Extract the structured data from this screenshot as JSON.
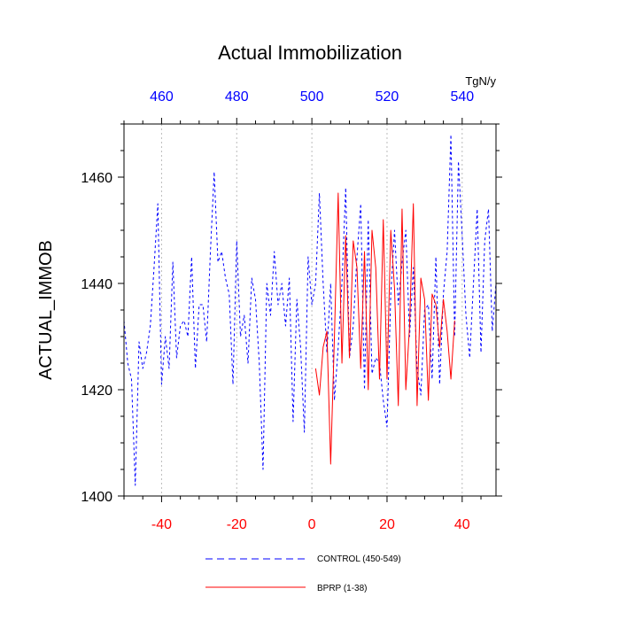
{
  "chart_data": {
    "type": "line",
    "title": "Actual Immobilization",
    "ylabel": "ACTUAL_IMMOB",
    "units": "TgN/y",
    "xlim": [
      -50,
      49
    ],
    "ylim": [
      1400,
      1470
    ],
    "x_ticks": [
      -40,
      -20,
      0,
      20,
      40
    ],
    "x_tick_labels": [
      "-40",
      "-20",
      "0",
      "20",
      "40"
    ],
    "top_ticks": [
      460,
      480,
      500,
      520,
      540
    ],
    "top_tick_labels": [
      "460",
      "480",
      "500",
      "520",
      "540"
    ],
    "top_offset": 500,
    "y_ticks": [
      1400,
      1420,
      1440,
      1460
    ],
    "y_tick_labels": [
      "1400",
      "1420",
      "1440",
      "1460"
    ],
    "colors": {
      "bottom_axis": "#ff0000",
      "top_axis": "#0000ff"
    },
    "series": [
      {
        "name": "CONTROL (450-549)",
        "color": "#0000ff",
        "dash": "3,3",
        "x": [
          -50,
          -49,
          -48,
          -47,
          -46,
          -45,
          -44,
          -43,
          -42,
          -41,
          -40,
          -39,
          -38,
          -37,
          -36,
          -35,
          -34,
          -33,
          -32,
          -31,
          -30,
          -29,
          -28,
          -27,
          -26,
          -25,
          -24,
          -23,
          -22,
          -21,
          -20,
          -19,
          -18,
          -17,
          -16,
          -15,
          -14,
          -13,
          -12,
          -11,
          -10,
          -9,
          -8,
          -7,
          -6,
          -5,
          -4,
          -3,
          -2,
          -1,
          0,
          1,
          2,
          3,
          4,
          5,
          6,
          7,
          8,
          9,
          10,
          11,
          12,
          13,
          14,
          15,
          16,
          17,
          18,
          19,
          20,
          21,
          22,
          23,
          24,
          25,
          26,
          27,
          28,
          29,
          30,
          31,
          32,
          33,
          34,
          35,
          36,
          37,
          38,
          39,
          40,
          41,
          42,
          43,
          44,
          45,
          46,
          47,
          48,
          49
        ],
        "values": [
          1433,
          1425,
          1422,
          1402,
          1429,
          1424,
          1427,
          1432,
          1443,
          1455,
          1421,
          1430,
          1424,
          1444,
          1426,
          1432,
          1433,
          1430,
          1445,
          1424,
          1436,
          1436,
          1429,
          1446,
          1461,
          1444,
          1446,
          1441,
          1438,
          1421,
          1448,
          1430,
          1434,
          1425,
          1441,
          1437,
          1425,
          1405,
          1440,
          1434,
          1446,
          1436,
          1440,
          1432,
          1441,
          1414,
          1437,
          1428,
          1412,
          1445,
          1436,
          1440,
          1457,
          1440,
          1427,
          1440,
          1418,
          1428,
          1440,
          1458,
          1426,
          1432,
          1445,
          1455,
          1420,
          1452,
          1423,
          1426,
          1425,
          1418,
          1413,
          1438,
          1450,
          1436,
          1444,
          1450,
          1430,
          1443,
          1424,
          1419,
          1435,
          1436,
          1422,
          1445,
          1421,
          1438,
          1446,
          1468,
          1430,
          1463,
          1449,
          1434,
          1426,
          1440,
          1454,
          1427,
          1448,
          1454,
          1431,
          1440
        ]
      },
      {
        "name": "BPRP (1-38)",
        "color": "#ff0000",
        "dash": "",
        "x": [
          1,
          2,
          3,
          4,
          5,
          6,
          7,
          8,
          9,
          10,
          11,
          12,
          13,
          14,
          15,
          16,
          17,
          18,
          19,
          20,
          21,
          22,
          23,
          24,
          25,
          26,
          27,
          28,
          29,
          30,
          31,
          32,
          33,
          34,
          35,
          36,
          37,
          38
        ],
        "values": [
          1424,
          1419,
          1428,
          1431,
          1406,
          1430,
          1457,
          1425,
          1449,
          1426,
          1448,
          1443,
          1424,
          1446,
          1420,
          1450,
          1443,
          1422,
          1452,
          1422,
          1450,
          1439,
          1417,
          1454,
          1420,
          1432,
          1455,
          1417,
          1441,
          1437,
          1418,
          1438,
          1436,
          1428,
          1437,
          1431,
          1422,
          1433
        ]
      }
    ],
    "legend": [
      "CONTROL (450-549)",
      "BPRP (1-38)"
    ]
  }
}
